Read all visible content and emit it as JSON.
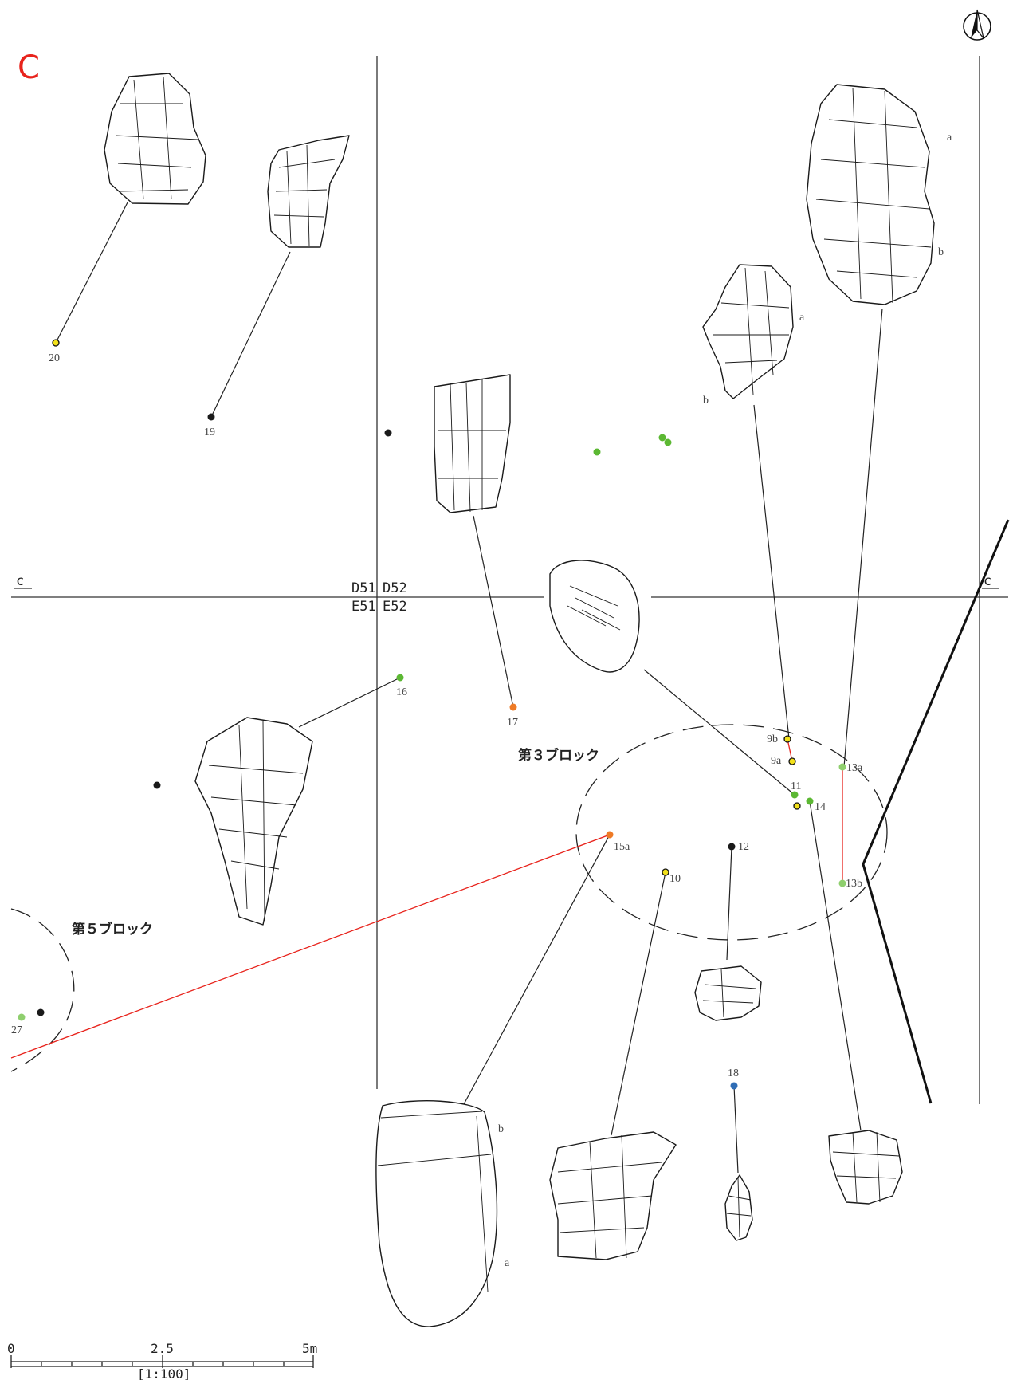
{
  "section_letter": "C",
  "section_mark_left": "c",
  "section_mark_right": "c",
  "grid_labels": {
    "nw": "D51",
    "ne": "D52",
    "sw": "E51",
    "se": "E52"
  },
  "block_labels": {
    "block3": "第３ブロック",
    "block5": "第５ブロック"
  },
  "point_labels": {
    "p20": "20",
    "p19": "19",
    "p16": "16",
    "p17": "17",
    "p9b": "9b",
    "p9a": "9a",
    "p11": "11",
    "p14": "14",
    "p13a": "13a",
    "p13b": "13b",
    "p15a": "15a",
    "p10": "10",
    "p12": "12",
    "p18": "18",
    "p27": "27"
  },
  "artifact_part_labels": {
    "a13_a": "a",
    "a13_b": "b",
    "a9_a": "a",
    "a9_b": "b",
    "a15_a": "a",
    "a15_b": "b"
  },
  "scale_bar": {
    "left": "0",
    "middle": "2.5",
    "right": "5m",
    "ratio": "[1:100]"
  },
  "colors": {
    "title": "#e8231c",
    "refit_line": "#e8231c",
    "yellow_point": "#f3e11a",
    "green_point": "#5cb833",
    "light_green_point": "#8fcf6e",
    "orange_point": "#ee7a25",
    "black_point": "#1a1a1a",
    "blue_point": "#2f6db5"
  },
  "icons": {
    "north": "north-arrow-icon"
  }
}
